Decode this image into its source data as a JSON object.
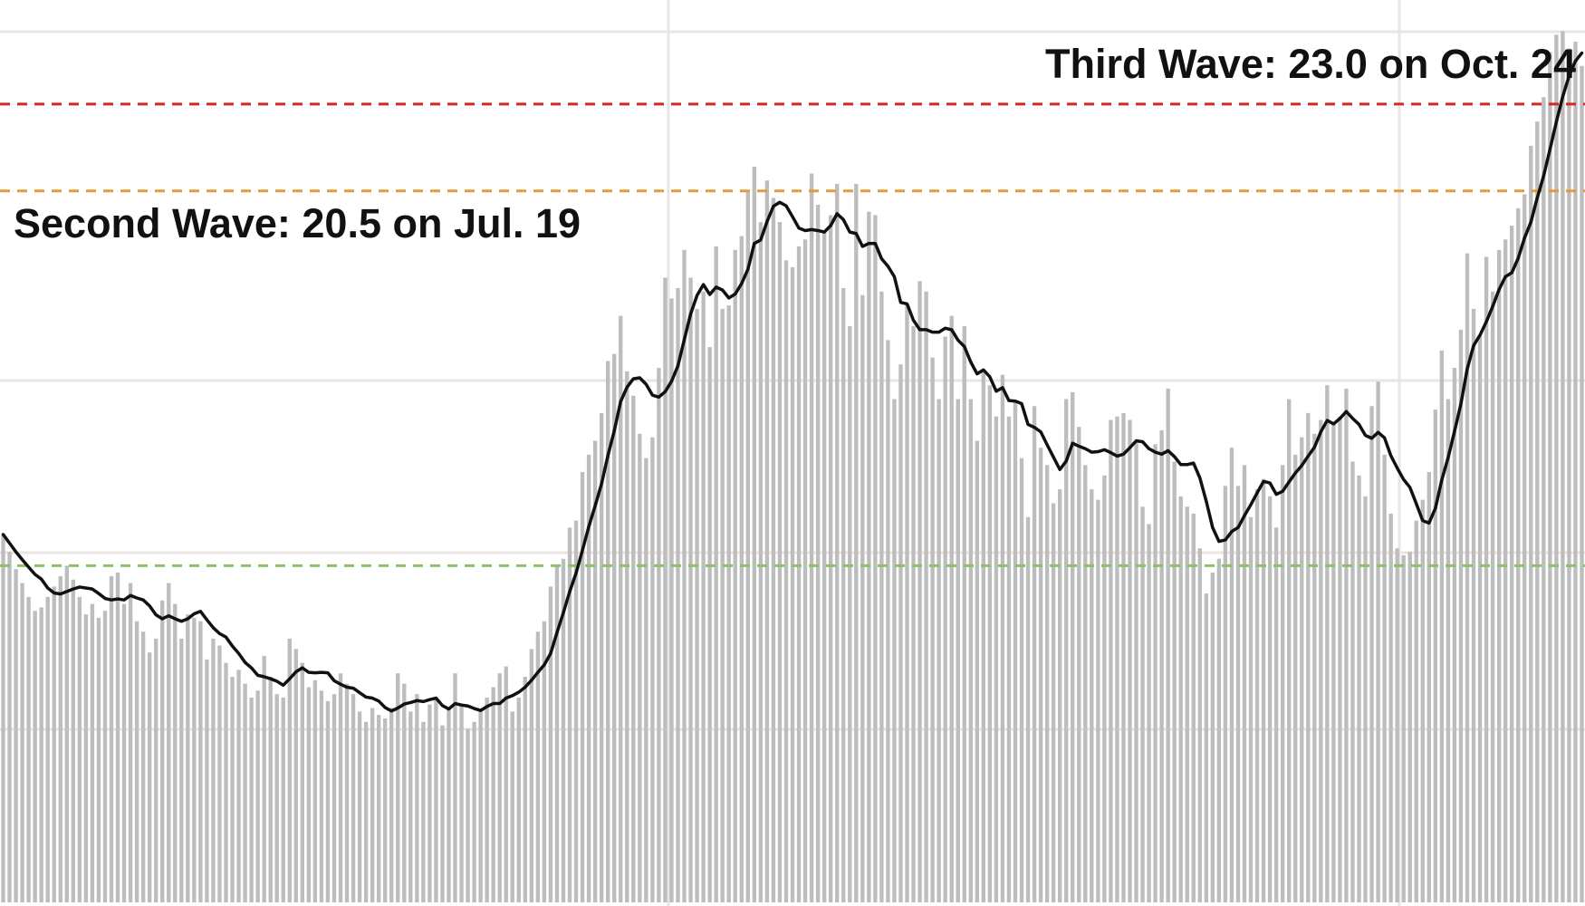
{
  "chart_data": {
    "type": "bar",
    "title": "",
    "xlabel": "",
    "ylabel": "",
    "ylim": [
      0,
      26
    ],
    "grid": true,
    "colors": {
      "bars": "#bdbdbd",
      "average_line": "#111111",
      "grid": "#e6e6e6",
      "third_wave_line": "#d62728",
      "second_wave_line": "#e69a3c",
      "first_wave_line": "#8cc06b"
    },
    "reference_lines": [
      {
        "name": "third-wave",
        "value": 23.0,
        "label": "Third Wave: 23.0 on Oct. 24"
      },
      {
        "name": "second-wave",
        "value": 20.5,
        "label": "Second Wave: 20.5 on Jul. 19"
      },
      {
        "name": "first-wave",
        "value": 9.7,
        "label": ""
      }
    ],
    "daily_values": [
      10.6,
      10.1,
      9.6,
      9.2,
      8.8,
      8.4,
      8.5,
      8.8,
      9.1,
      9.4,
      9.7,
      9.3,
      8.8,
      8.3,
      8.6,
      8.2,
      8.4,
      9.4,
      9.5,
      8.6,
      9.2,
      8.1,
      7.8,
      7.2,
      7.6,
      8.7,
      9.2,
      8.6,
      7.6,
      8.3,
      8.2,
      8.1,
      7.0,
      7.6,
      7.4,
      6.9,
      6.5,
      6.7,
      6.3,
      5.9,
      6.1,
      7.1,
      6.5,
      6.0,
      5.9,
      7.6,
      7.3,
      6.9,
      6.2,
      6.4,
      6.1,
      5.8,
      6.0,
      6.6,
      6.3,
      6.0,
      5.5,
      5.2,
      5.6,
      5.4,
      5.3,
      5.6,
      6.6,
      6.3,
      5.5,
      6.0,
      5.2,
      5.7,
      5.9,
      5.1,
      5.6,
      6.6,
      5.7,
      5.0,
      5.2,
      5.5,
      5.9,
      6.2,
      6.6,
      6.8,
      5.5,
      5.9,
      6.5,
      7.3,
      7.8,
      8.1,
      9.1,
      9.7,
      9.9,
      10.8,
      11.0,
      12.4,
      12.9,
      13.3,
      14.1,
      15.6,
      15.8,
      16.9,
      15.3,
      14.6,
      13.5,
      12.8,
      13.4,
      15.4,
      18.0,
      17.4,
      17.7,
      18.8,
      18.0,
      17.1,
      17.6,
      16.0,
      18.9,
      17.1,
      17.2,
      18.8,
      19.2,
      20.5,
      21.2,
      19.6,
      20.8,
      20.3,
      19.6,
      18.5,
      18.3,
      18.9,
      19.1,
      21.0,
      20.1,
      19.3,
      19.8,
      20.7,
      17.7,
      16.6,
      20.7,
      17.5,
      19.9,
      19.8,
      17.6,
      16.2,
      14.5,
      15.5,
      17.2,
      16.6,
      17.9,
      17.6,
      15.7,
      14.5,
      16.3,
      16.9,
      14.5,
      16.6,
      14.5,
      13.3,
      15.3,
      14.9,
      14.0,
      15.2,
      14.0,
      14.4,
      12.8,
      11.1,
      14.3,
      13.1,
      12.6,
      11.5,
      11.9,
      14.5,
      14.7,
      13.7,
      12.6,
      11.9,
      11.6,
      12.3,
      13.9,
      14.0,
      14.1,
      13.9,
      13.3,
      11.4,
      10.9,
      13.2,
      13.6,
      14.8,
      12.7,
      11.7,
      11.4,
      11.2,
      10.2,
      8.9,
      9.5,
      9.9,
      12.0,
      13.1,
      12.0,
      12.6,
      11.1,
      11.9,
      12.2,
      11.7,
      10.8,
      12.6,
      14.5,
      12.9,
      13.4,
      14.1,
      13.5,
      13.9,
      14.9,
      13.8,
      14.0,
      14.8,
      12.7,
      12.3,
      11.7,
      14.3,
      15.0,
      12.9,
      11.2,
      10.2,
      10.0,
      10.1,
      11.0,
      11.6,
      12.4,
      14.2,
      15.9,
      14.5,
      15.4,
      16.5,
      18.7,
      17.1,
      16.3,
      18.6,
      17.6,
      18.8,
      19.1,
      19.5,
      20.0,
      20.4,
      21.8,
      22.5,
      23.2,
      24.5,
      25.0,
      25.1,
      24.6,
      24.8,
      24.1
    ]
  }
}
